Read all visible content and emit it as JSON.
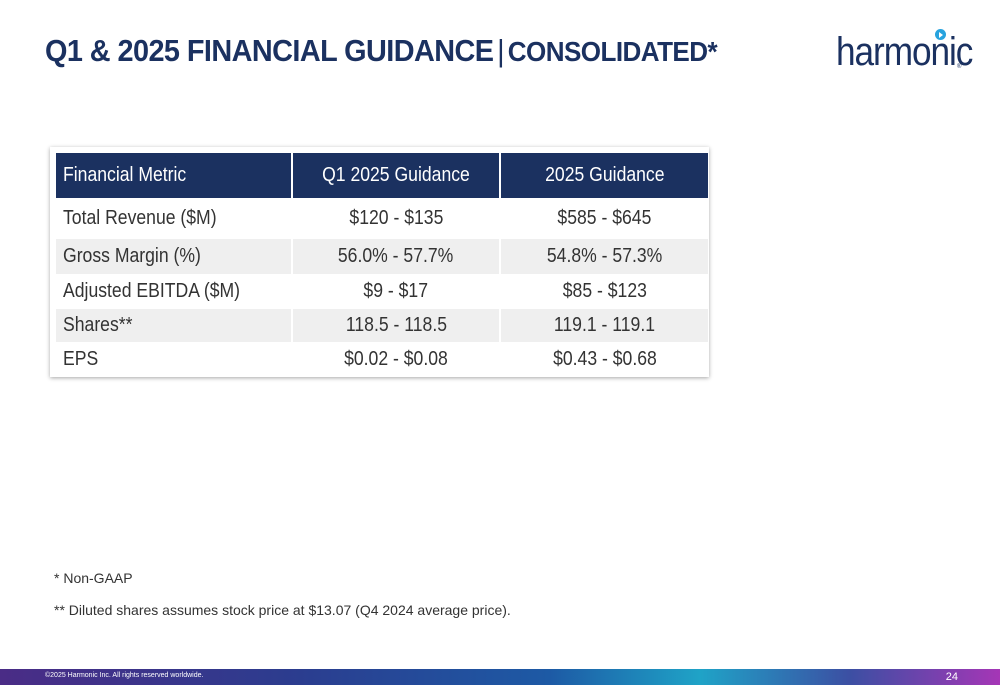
{
  "title": {
    "main": "Q1 & 2025 FINANCIAL GUIDANCE",
    "separator": "|",
    "sub": "CONSOLIDATED*"
  },
  "logo": {
    "text": "harmonic",
    "registered": "®"
  },
  "table": {
    "headers": [
      "Financial Metric",
      "Q1 2025 Guidance",
      "2025 Guidance"
    ],
    "rows": [
      [
        "Total Revenue ($M)",
        "$120 - $135",
        "$585 - $645"
      ],
      [
        "Gross Margin (%)",
        "56.0% - 57.7%",
        "54.8% - 57.3%"
      ],
      [
        "Adjusted EBITDA ($M)",
        "$9 - $17",
        "$85 - $123"
      ],
      [
        "Shares**",
        "118.5 - 118.5",
        "119.1 - 119.1"
      ],
      [
        "EPS",
        "$0.02 - $0.08",
        "$0.43 - $0.68"
      ]
    ]
  },
  "notes": {
    "non_gaap": "* Non-GAAP",
    "diluted": "** Diluted shares assumes stock price at $13.07 (Q4 2024 average price)."
  },
  "footer": {
    "copyright": "©2025 Harmonic Inc. All rights reserved worldwide.",
    "page_number": "24"
  },
  "colors": {
    "navy": "#1b3160",
    "accent": "#27a3de",
    "row_shade": "#efefef"
  }
}
